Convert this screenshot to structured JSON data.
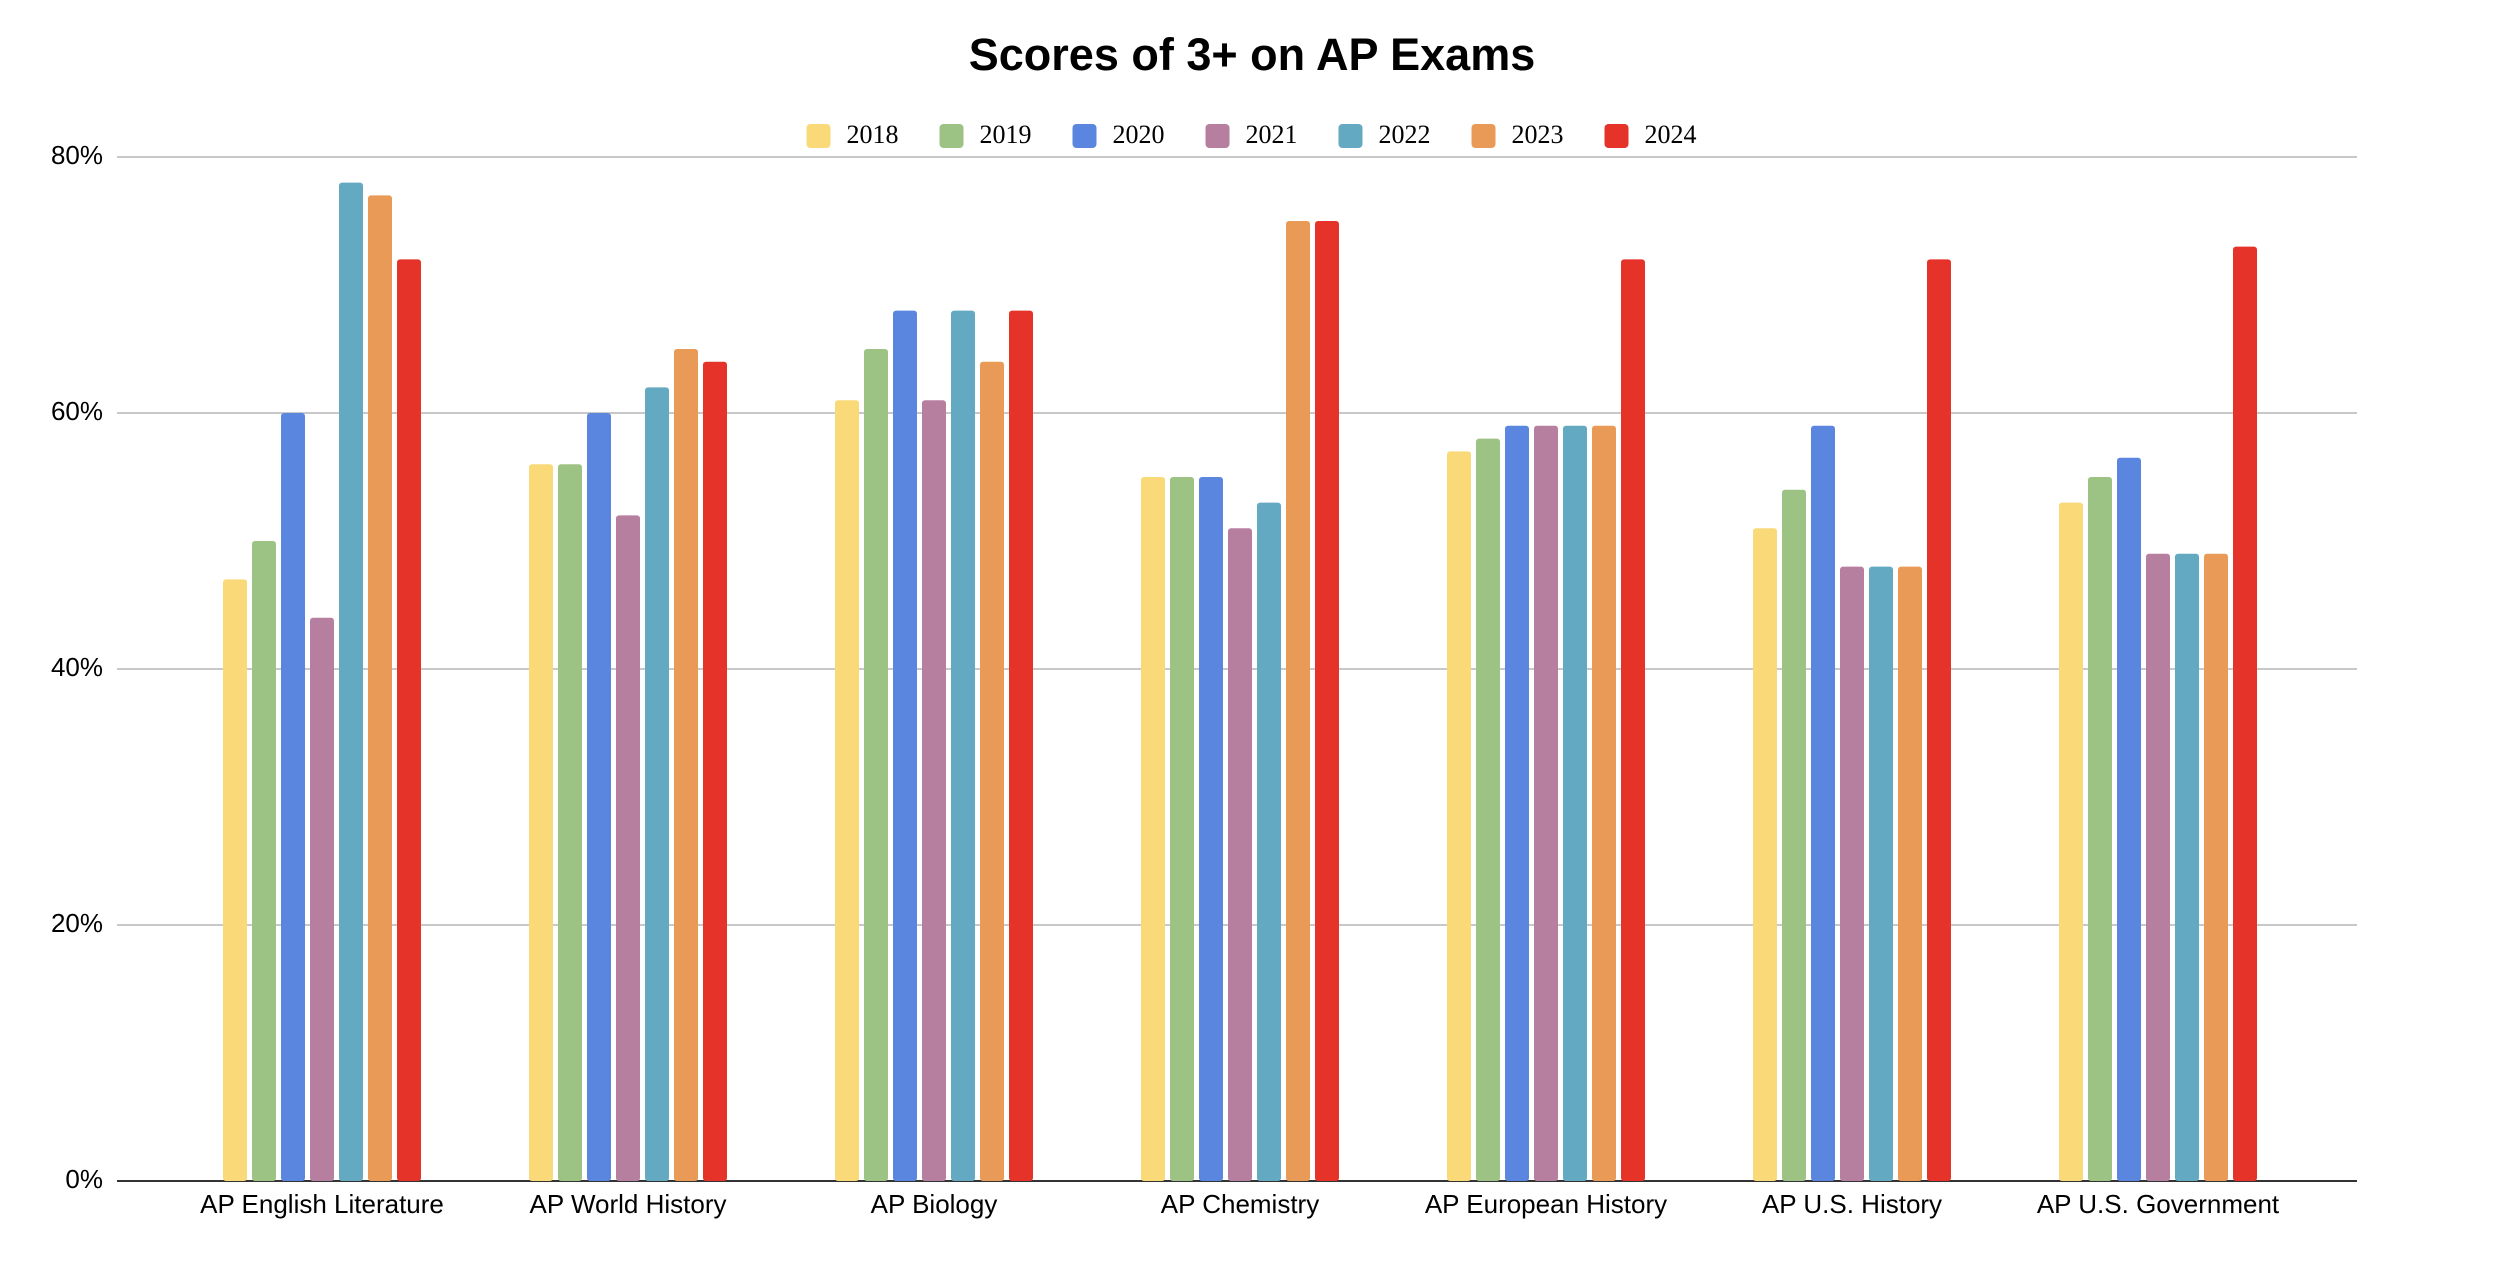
{
  "chart_data": {
    "type": "bar",
    "title": "Scores of 3+ on AP Exams",
    "categories": [
      "AP English Literature",
      "AP World History",
      "AP Biology",
      "AP Chemistry",
      "AP European History",
      "AP U.S. History",
      "AP U.S. Government"
    ],
    "series": [
      {
        "name": "2018",
        "color": "#f9d978",
        "values": [
          47,
          56,
          61,
          55,
          57,
          51,
          53
        ]
      },
      {
        "name": "2019",
        "color": "#9dc384",
        "values": [
          50,
          56,
          65,
          55,
          58,
          54,
          55
        ]
      },
      {
        "name": "2020",
        "color": "#5b86e0",
        "values": [
          60,
          60,
          68,
          55,
          59,
          59,
          56.5
        ]
      },
      {
        "name": "2021",
        "color": "#b67fa0",
        "values": [
          44,
          52,
          61,
          51,
          59,
          48,
          49
        ]
      },
      {
        "name": "2022",
        "color": "#63a9c2",
        "values": [
          78,
          62,
          68,
          53,
          59,
          48,
          49
        ]
      },
      {
        "name": "2023",
        "color": "#ea9a57",
        "values": [
          77,
          65,
          64,
          75,
          59,
          48,
          49
        ]
      },
      {
        "name": "2024",
        "color": "#e6332a",
        "values": [
          72,
          64,
          68,
          75,
          72,
          72,
          73
        ]
      }
    ],
    "ylim": [
      0,
      80
    ],
    "yticks": [
      {
        "value": 0,
        "label": "0%"
      },
      {
        "value": 20,
        "label": "20%"
      },
      {
        "value": 40,
        "label": "40%"
      },
      {
        "value": 60,
        "label": "60%"
      },
      {
        "value": 80,
        "label": "80%"
      }
    ],
    "grid": true,
    "legend": "top"
  }
}
